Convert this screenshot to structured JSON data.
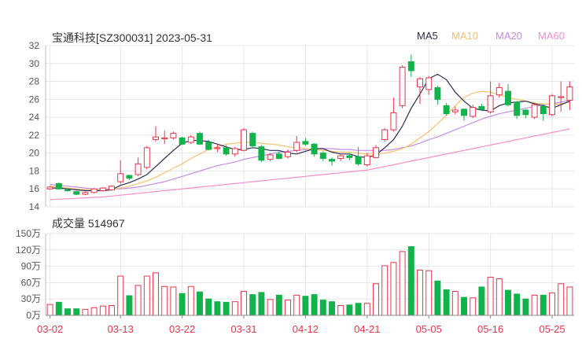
{
  "header": {
    "title": "宝通科技[SZ300031] 2023-05-31"
  },
  "volume_panel": {
    "label": "成交量",
    "value": "514967"
  },
  "legend": [
    {
      "name": "MA5",
      "color": "#2b2b55"
    },
    {
      "name": "MA10",
      "color": "#f5c26b"
    },
    {
      "name": "MA20",
      "color": "#c98be6"
    },
    {
      "name": "MA60",
      "color": "#f58fc8"
    }
  ],
  "colors": {
    "up": "#e8364a",
    "down": "#12b34b",
    "grid": "#e6e6e6",
    "axis": "#555555",
    "date_label": "#e8364a"
  },
  "chart_data": [
    {
      "type": "candlestick",
      "title": "宝通科技[SZ300031] 2023-05-31",
      "ylim": [
        14,
        32
      ],
      "y_ticks": [
        14,
        16,
        18,
        20,
        22,
        24,
        26,
        28,
        30,
        32
      ],
      "x_tick_labels": [
        {
          "index": 0,
          "label": "03-02"
        },
        {
          "index": 8,
          "label": "03-13"
        },
        {
          "index": 15,
          "label": "03-22"
        },
        {
          "index": 22,
          "label": "03-31"
        },
        {
          "index": 29,
          "label": "04-12"
        },
        {
          "index": 36,
          "label": "04-21"
        },
        {
          "index": 43,
          "label": "05-05"
        },
        {
          "index": 50,
          "label": "05-16"
        },
        {
          "index": 57,
          "label": "05-25"
        }
      ],
      "candles": [
        [
          16.0,
          16.2,
          15.9,
          16.3
        ],
        [
          16.6,
          16.0,
          15.9,
          16.7
        ],
        [
          15.9,
          15.8,
          15.7,
          16.0
        ],
        [
          15.7,
          15.4,
          15.3,
          15.8
        ],
        [
          15.4,
          15.6,
          15.3,
          15.7
        ],
        [
          15.6,
          16.0,
          15.5,
          16.1
        ],
        [
          15.8,
          16.1,
          15.7,
          16.2
        ],
        [
          15.9,
          16.3,
          15.8,
          16.4
        ],
        [
          16.8,
          17.7,
          16.6,
          19.2
        ],
        [
          17.5,
          17.2,
          17.0,
          17.6
        ],
        [
          17.6,
          18.8,
          17.4,
          19.5
        ],
        [
          18.4,
          20.6,
          18.2,
          20.8
        ],
        [
          21.5,
          21.8,
          21.3,
          23.0
        ],
        [
          21.6,
          21.7,
          21.0,
          22.5
        ],
        [
          21.7,
          22.2,
          21.5,
          22.4
        ],
        [
          21.7,
          21.0,
          20.9,
          21.8
        ],
        [
          21.2,
          21.8,
          21.0,
          22.0
        ],
        [
          22.2,
          21.0,
          20.9,
          22.4
        ],
        [
          21.2,
          20.4,
          20.3,
          21.5
        ],
        [
          20.6,
          20.6,
          20.1,
          21.0
        ],
        [
          20.6,
          19.9,
          19.7,
          20.9
        ],
        [
          19.9,
          20.5,
          19.6,
          20.7
        ],
        [
          20.3,
          22.6,
          20.2,
          22.8
        ],
        [
          22.2,
          20.8,
          20.6,
          22.4
        ],
        [
          20.7,
          19.2,
          19.0,
          20.9
        ],
        [
          19.3,
          19.8,
          19.1,
          20.0
        ],
        [
          19.9,
          19.4,
          19.3,
          20.2
        ],
        [
          19.6,
          20.1,
          19.4,
          20.4
        ],
        [
          20.3,
          21.2,
          20.1,
          21.9
        ],
        [
          21.3,
          21.0,
          20.8,
          21.7
        ],
        [
          21.0,
          19.9,
          19.6,
          21.1
        ],
        [
          20.0,
          19.4,
          19.1,
          20.2
        ],
        [
          19.3,
          19.1,
          18.6,
          19.5
        ],
        [
          19.4,
          19.7,
          19.1,
          19.9
        ],
        [
          19.7,
          19.5,
          19.2,
          20.0
        ],
        [
          19.6,
          18.8,
          18.6,
          20.7
        ],
        [
          18.7,
          19.7,
          18.5,
          20.0
        ],
        [
          19.5,
          20.6,
          19.4,
          20.9
        ],
        [
          21.5,
          22.6,
          21.3,
          22.8
        ],
        [
          22.6,
          24.5,
          22.4,
          26.2
        ],
        [
          25.3,
          29.6,
          25.0,
          29.8
        ],
        [
          30.2,
          29.2,
          28.5,
          31.0
        ],
        [
          27.4,
          28.3,
          25.5,
          28.5
        ],
        [
          27.1,
          28.4,
          26.5,
          28.6
        ],
        [
          27.3,
          26.0,
          25.4,
          27.5
        ],
        [
          25.3,
          24.4,
          24.2,
          25.6
        ],
        [
          24.6,
          24.8,
          24.3,
          25.2
        ],
        [
          24.9,
          24.2,
          23.6,
          25.0
        ],
        [
          24.1,
          25.1,
          23.9,
          25.4
        ],
        [
          25.2,
          24.9,
          24.7,
          25.5
        ],
        [
          24.6,
          26.4,
          24.4,
          28.0
        ],
        [
          26.5,
          27.3,
          26.2,
          27.8
        ],
        [
          26.9,
          25.4,
          25.2,
          27.7
        ],
        [
          25.7,
          24.2,
          23.8,
          25.8
        ],
        [
          24.8,
          24.3,
          23.9,
          24.9
        ],
        [
          24.0,
          25.4,
          23.8,
          25.5
        ],
        [
          25.2,
          24.4,
          23.6,
          25.4
        ],
        [
          24.3,
          26.4,
          24.1,
          26.6
        ],
        [
          26.3,
          26.3,
          24.6,
          28.0
        ],
        [
          25.9,
          27.4,
          24.8,
          28.0
        ]
      ],
      "ma5": [
        16.1,
        16.1,
        16.0,
        15.9,
        15.8,
        15.8,
        15.8,
        15.9,
        16.4,
        16.7,
        17.1,
        17.6,
        18.5,
        19.4,
        20.3,
        21.1,
        21.4,
        21.4,
        21.3,
        21.0,
        20.7,
        20.4,
        20.4,
        20.6,
        20.5,
        20.3,
        20.3,
        20.0,
        19.9,
        20.2,
        20.5,
        20.5,
        20.1,
        19.9,
        19.9,
        19.6,
        19.5,
        19.8,
        20.6,
        21.5,
        23.0,
        25.0,
        26.6,
        28.3,
        28.8,
        28.2,
        26.8,
        25.8,
        25.0,
        24.8,
        24.7,
        25.3,
        25.6,
        25.7,
        25.8,
        25.5,
        25.3,
        25.0,
        25.4,
        25.8
      ],
      "ma10": [
        16.3,
        16.2,
        16.1,
        16.0,
        15.9,
        15.9,
        15.9,
        15.9,
        16.1,
        16.3,
        16.6,
        16.9,
        17.3,
        17.8,
        18.3,
        18.8,
        19.4,
        19.9,
        20.4,
        20.7,
        21.0,
        21.1,
        21.2,
        21.2,
        21.1,
        21.0,
        20.9,
        20.7,
        20.6,
        20.5,
        20.4,
        20.3,
        20.2,
        20.1,
        20.1,
        20.0,
        19.9,
        19.9,
        20.0,
        20.2,
        20.5,
        21.0,
        21.7,
        22.4,
        23.3,
        24.2,
        25.3,
        26.2,
        26.7,
        26.9,
        26.8,
        26.5,
        26.2,
        26.0,
        25.8,
        25.6,
        25.5,
        25.4,
        25.5,
        25.7
      ],
      "ma20": [
        16.5,
        16.4,
        16.3,
        16.2,
        16.1,
        16.0,
        16.0,
        16.0,
        16.0,
        16.1,
        16.2,
        16.4,
        16.6,
        16.8,
        17.1,
        17.4,
        17.7,
        18.0,
        18.3,
        18.6,
        18.8,
        19.0,
        19.3,
        19.5,
        19.7,
        19.9,
        20.1,
        20.2,
        20.3,
        20.4,
        20.5,
        20.5,
        20.5,
        20.4,
        20.4,
        20.3,
        20.3,
        20.3,
        20.3,
        20.4,
        20.6,
        20.8,
        21.1,
        21.5,
        21.8,
        22.2,
        22.6,
        23.0,
        23.4,
        23.8,
        24.1,
        24.4,
        24.6,
        24.8,
        25.0,
        25.2,
        25.4,
        25.5,
        25.7,
        25.9
      ],
      "ma60": [
        14.8,
        14.85,
        14.9,
        14.95,
        15.0,
        15.05,
        15.1,
        15.2,
        15.3,
        15.4,
        15.5,
        15.6,
        15.7,
        15.8,
        15.9,
        16.0,
        16.1,
        16.2,
        16.3,
        16.4,
        16.5,
        16.6,
        16.7,
        16.8,
        16.9,
        17.0,
        17.1,
        17.2,
        17.3,
        17.4,
        17.5,
        17.6,
        17.7,
        17.8,
        17.9,
        18.0,
        18.1,
        18.3,
        18.5,
        18.7,
        18.9,
        19.1,
        19.3,
        19.5,
        19.7,
        19.9,
        20.1,
        20.3,
        20.5,
        20.7,
        20.9,
        21.1,
        21.3,
        21.5,
        21.7,
        21.9,
        22.1,
        22.3,
        22.5,
        22.7
      ]
    },
    {
      "type": "bar",
      "title": "成交量 514967",
      "ylim": [
        0,
        150
      ],
      "y_ticks": [
        {
          "value": 0,
          "label": "0万"
        },
        {
          "value": 30,
          "label": "30万"
        },
        {
          "value": 60,
          "label": "60万"
        },
        {
          "value": 90,
          "label": "90万"
        },
        {
          "value": 120,
          "label": "120万"
        },
        {
          "value": 150,
          "label": "150万"
        }
      ],
      "unit": "万",
      "values": [
        20,
        24,
        12,
        12,
        11,
        14,
        17,
        18,
        72,
        36,
        55,
        72,
        78,
        53,
        52,
        40,
        53,
        43,
        30,
        25,
        24,
        25,
        44,
        38,
        42,
        29,
        37,
        28,
        37,
        35,
        38,
        28,
        25,
        18,
        19,
        22,
        22,
        58,
        91,
        97,
        117,
        126,
        83,
        82,
        63,
        47,
        44,
        33,
        32,
        52,
        70,
        67,
        46,
        39,
        30,
        37,
        37,
        41,
        58,
        52
      ],
      "directions": [
        "up",
        "down",
        "down",
        "down",
        "up",
        "up",
        "up",
        "up",
        "up",
        "down",
        "up",
        "up",
        "up",
        "up",
        "up",
        "down",
        "up",
        "down",
        "down",
        "down",
        "down",
        "up",
        "up",
        "down",
        "down",
        "up",
        "down",
        "up",
        "up",
        "down",
        "down",
        "down",
        "down",
        "up",
        "down",
        "down",
        "up",
        "up",
        "up",
        "up",
        "up",
        "down",
        "up",
        "up",
        "down",
        "down",
        "up",
        "down",
        "up",
        "down",
        "up",
        "up",
        "down",
        "down",
        "down",
        "up",
        "down",
        "up",
        "up",
        "up"
      ]
    }
  ]
}
